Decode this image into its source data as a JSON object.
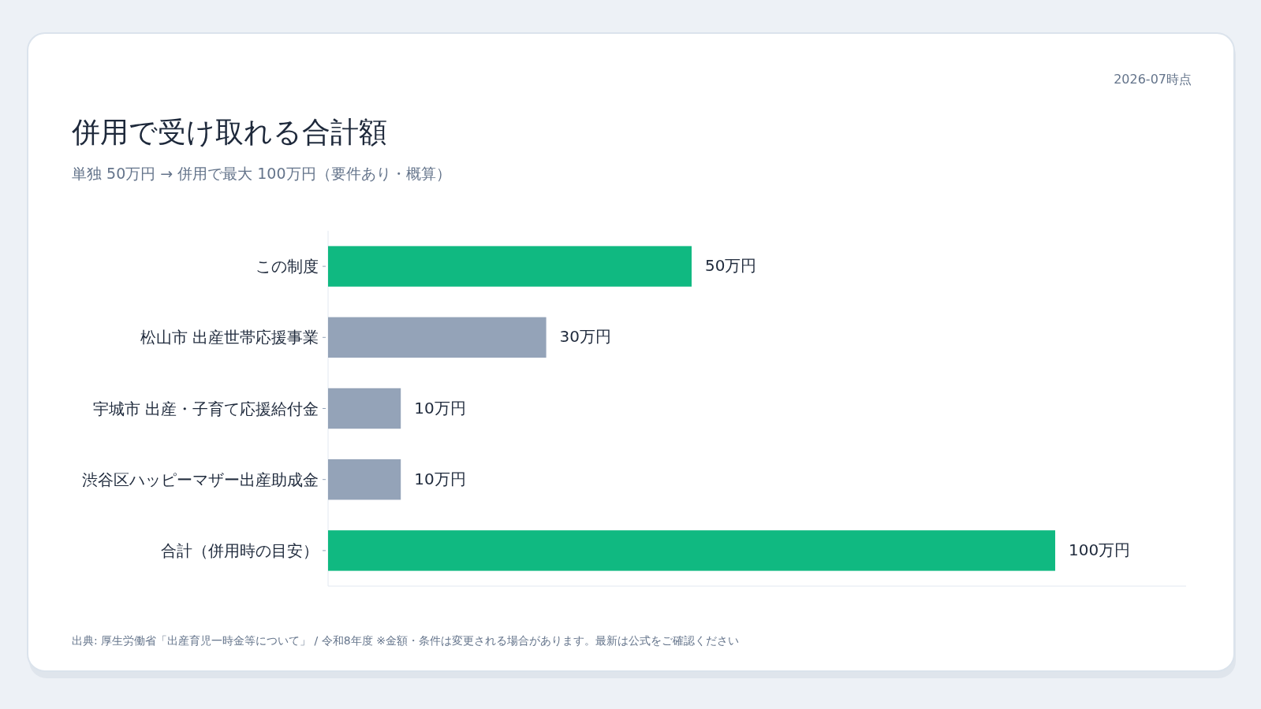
{
  "chart_data": {
    "type": "bar",
    "orientation": "horizontal",
    "title": "併用で受け取れる合計額",
    "subtitle": "単独 50万円 → 併用で最大 100万円（要件あり・概算）",
    "categories": [
      "この制度",
      "松山市 出産世帯応援事業",
      "宇城市 出産・子育て応援給付金",
      "渋谷区ハッピーマザー出産助成金",
      "合計（併用時の目安）"
    ],
    "values": [
      50,
      30,
      10,
      10,
      100
    ],
    "colors": [
      "#10b981",
      "#94a3b8",
      "#94a3b8",
      "#94a3b8",
      "#10b981"
    ],
    "value_labels": [
      "50万円",
      "30万円",
      "10万円",
      "10万円",
      "100万円"
    ],
    "annotations": [
      "2026-07時点",
      "出典: 厚生労働省「出産育児一時金等について」 / 令和8年度 ※金額・条件は変更される場合があります。最新は公式をご確認ください"
    ]
  }
}
